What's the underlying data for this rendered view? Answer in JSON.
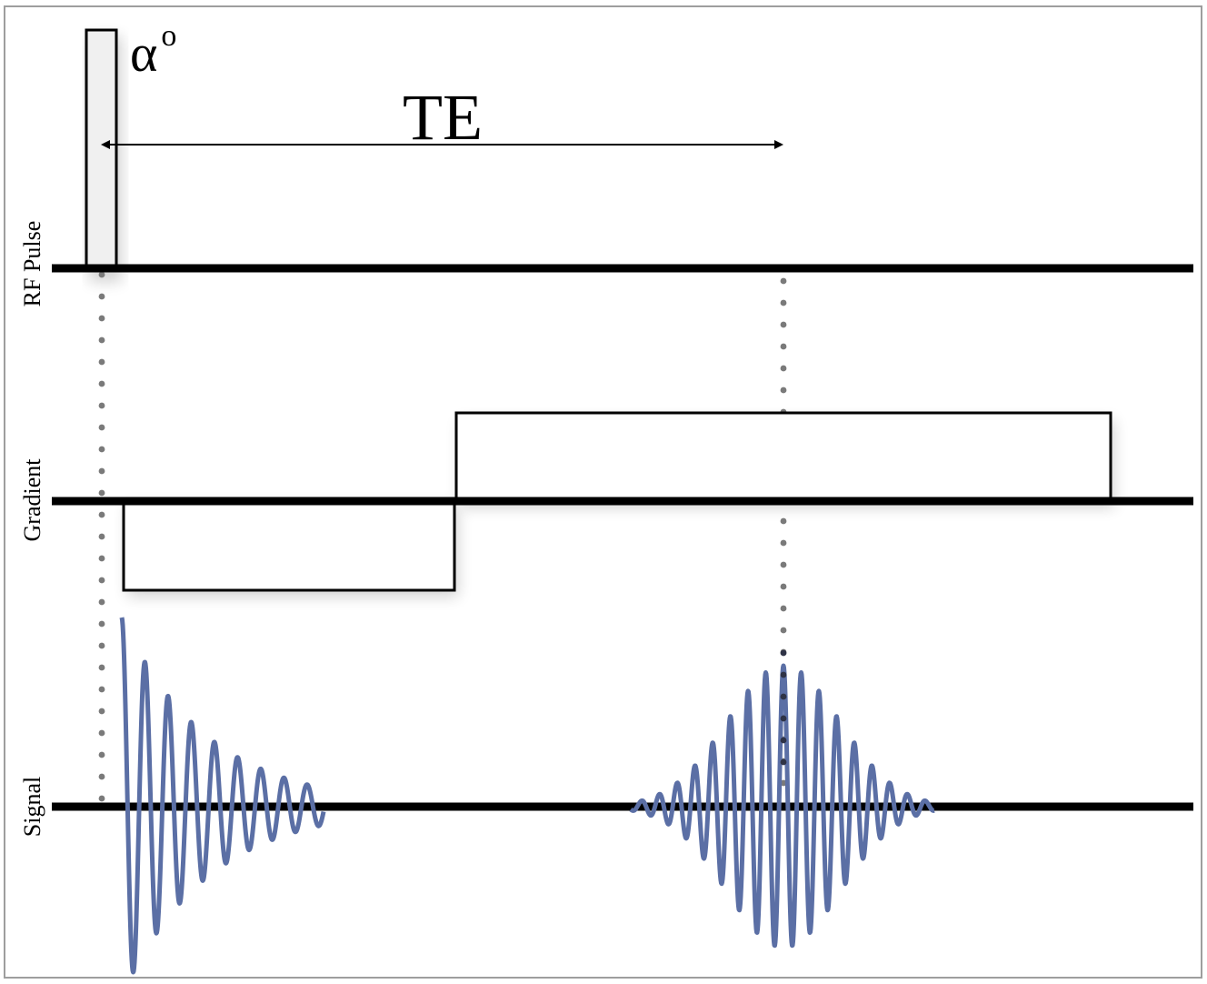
{
  "rf_pulse": {
    "flip_label": "α",
    "flip_superscript": "o"
  },
  "echo_time": {
    "label": "TE"
  },
  "rows": {
    "rf": "RF Pulse",
    "gradient": "Gradient",
    "signal": "Signal"
  },
  "colors": {
    "axis": "#000000",
    "signal": "#5b6fa5",
    "guide_dots": "#7a7a7a",
    "frame": "#9e9e9e"
  }
}
